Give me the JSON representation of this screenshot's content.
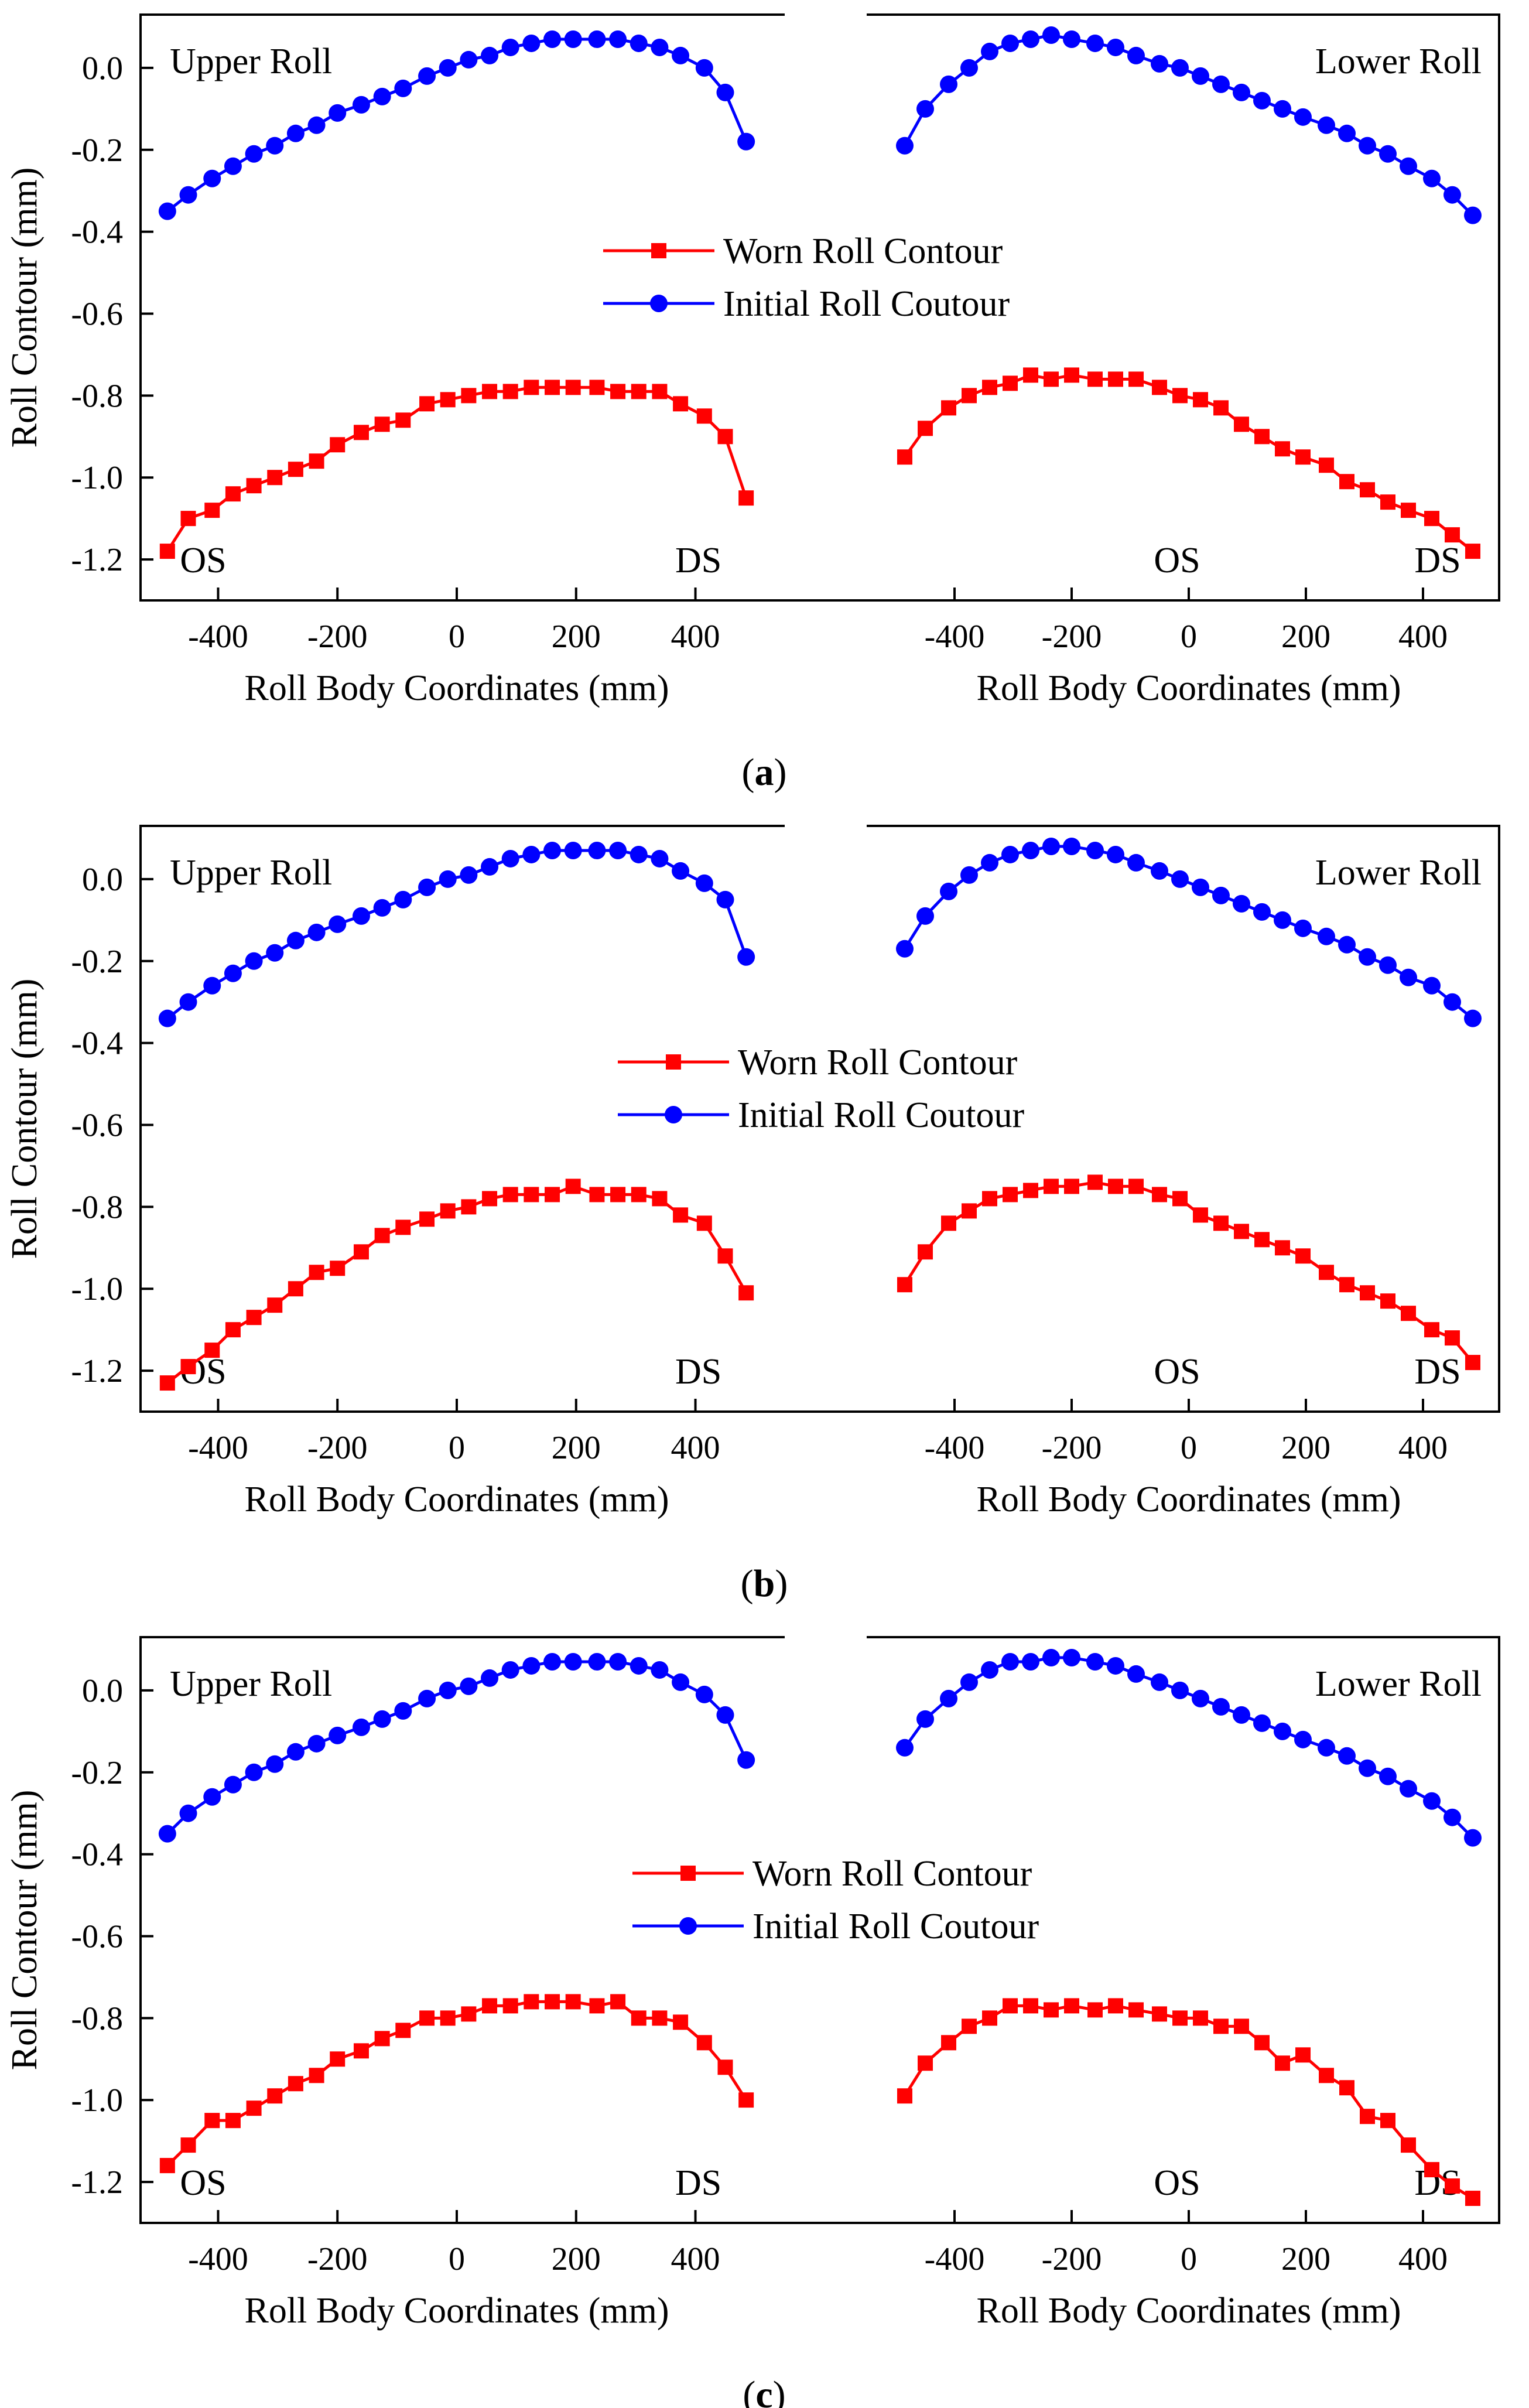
{
  "figure": {
    "y_axis_title": "Roll Contour (mm)",
    "x_axis_title": "Roll Body Coordinates (mm)",
    "left_roll_label": "Upper Roll",
    "right_roll_label": "Lower Roll",
    "os_label": "OS",
    "ds_label": "DS",
    "legend": {
      "worn": "Worn Roll Contour",
      "initial": "Initial Roll Coutour"
    },
    "colors": {
      "worn": "#ff0000",
      "initial": "#0000ff",
      "axis": "#000000"
    },
    "marker_shapes": {
      "worn": "square",
      "initial": "circle"
    }
  },
  "chart_data": [
    {
      "type": "line",
      "caption": "(a)",
      "caption_letter": "a",
      "ylabel": "Roll Contour (mm)",
      "ylim": [
        -1.3,
        0.13
      ],
      "yticks": [
        0.0,
        -0.2,
        -0.4,
        -0.6,
        -0.8,
        -1.0,
        -1.2
      ],
      "ytick_labels": [
        "0.0",
        "-0.2",
        "-0.4",
        "-0.6",
        "-0.8",
        "-1.0",
        "-1.2"
      ],
      "panels": [
        {
          "name": "Upper Roll",
          "xlabel": "Roll Body Coordinates (mm)",
          "xlim": [
            -530,
            530
          ],
          "xticks": [
            -400,
            -200,
            0,
            200,
            400
          ],
          "xtick_labels": [
            "-400",
            "-200",
            "0",
            "200",
            "400"
          ],
          "x": [
            -485,
            -450,
            -410,
            -375,
            -340,
            -305,
            -270,
            -235,
            -200,
            -160,
            -125,
            -90,
            -50,
            -15,
            20,
            55,
            90,
            125,
            160,
            195,
            235,
            270,
            305,
            340,
            375,
            415,
            450,
            485
          ],
          "series": [
            {
              "name": "Initial Roll Coutour",
              "values": [
                -0.35,
                -0.31,
                -0.27,
                -0.24,
                -0.21,
                -0.19,
                -0.16,
                -0.14,
                -0.11,
                -0.09,
                -0.07,
                -0.05,
                -0.02,
                0.0,
                0.02,
                0.03,
                0.05,
                0.06,
                0.07,
                0.07,
                0.07,
                0.07,
                0.06,
                0.05,
                0.03,
                0.0,
                -0.06,
                -0.18
              ]
            },
            {
              "name": "Worn Roll Contour",
              "values": [
                -1.18,
                -1.1,
                -1.08,
                -1.04,
                -1.02,
                -1.0,
                -0.98,
                -0.96,
                -0.92,
                -0.89,
                -0.87,
                -0.86,
                -0.82,
                -0.81,
                -0.8,
                -0.79,
                -0.79,
                -0.78,
                -0.78,
                -0.78,
                -0.78,
                -0.79,
                -0.79,
                -0.79,
                -0.82,
                -0.85,
                -0.9,
                -1.05
              ]
            }
          ]
        },
        {
          "name": "Lower Roll",
          "xlabel": "Roll Body Coordinates (mm)",
          "xlim": [
            -530,
            530
          ],
          "xticks": [
            -400,
            -200,
            0,
            200,
            400
          ],
          "xtick_labels": [
            "-400",
            "-200",
            "0",
            "200",
            "400"
          ],
          "x": [
            -485,
            -450,
            -410,
            -375,
            -340,
            -305,
            -270,
            -235,
            -200,
            -160,
            -125,
            -90,
            -50,
            -15,
            20,
            55,
            90,
            125,
            160,
            195,
            235,
            270,
            305,
            340,
            375,
            415,
            450,
            485
          ],
          "series": [
            {
              "name": "Initial Roll Coutour",
              "values": [
                -0.19,
                -0.1,
                -0.04,
                0.0,
                0.04,
                0.06,
                0.07,
                0.08,
                0.07,
                0.06,
                0.05,
                0.03,
                0.01,
                0.0,
                -0.02,
                -0.04,
                -0.06,
                -0.08,
                -0.1,
                -0.12,
                -0.14,
                -0.16,
                -0.19,
                -0.21,
                -0.24,
                -0.27,
                -0.31,
                -0.36
              ]
            },
            {
              "name": "Worn Roll Contour",
              "values": [
                -0.95,
                -0.88,
                -0.83,
                -0.8,
                -0.78,
                -0.77,
                -0.75,
                -0.76,
                -0.75,
                -0.76,
                -0.76,
                -0.76,
                -0.78,
                -0.8,
                -0.81,
                -0.83,
                -0.87,
                -0.9,
                -0.93,
                -0.95,
                -0.97,
                -1.01,
                -1.03,
                -1.06,
                -1.08,
                -1.1,
                -1.14,
                -1.18
              ]
            }
          ]
        }
      ]
    },
    {
      "type": "line",
      "caption": "(b)",
      "caption_letter": "b",
      "ylabel": "Roll Contour (mm)",
      "ylim": [
        -1.3,
        0.13
      ],
      "yticks": [
        0.0,
        -0.2,
        -0.4,
        -0.6,
        -0.8,
        -1.0,
        -1.2
      ],
      "ytick_labels": [
        "0.0",
        "-0.2",
        "-0.4",
        "-0.6",
        "-0.8",
        "-1.0",
        "-1.2"
      ],
      "panels": [
        {
          "name": "Upper Roll",
          "xlabel": "Roll Body Coordinates (mm)",
          "xlim": [
            -530,
            530
          ],
          "xticks": [
            -400,
            -200,
            0,
            200,
            400
          ],
          "xtick_labels": [
            "-400",
            "-200",
            "0",
            "200",
            "400"
          ],
          "x": [
            -485,
            -450,
            -410,
            -375,
            -340,
            -305,
            -270,
            -235,
            -200,
            -160,
            -125,
            -90,
            -50,
            -15,
            20,
            55,
            90,
            125,
            160,
            195,
            235,
            270,
            305,
            340,
            375,
            415,
            450,
            485
          ],
          "series": [
            {
              "name": "Initial Roll Coutour",
              "values": [
                -0.34,
                -0.3,
                -0.26,
                -0.23,
                -0.2,
                -0.18,
                -0.15,
                -0.13,
                -0.11,
                -0.09,
                -0.07,
                -0.05,
                -0.02,
                0.0,
                0.01,
                0.03,
                0.05,
                0.06,
                0.07,
                0.07,
                0.07,
                0.07,
                0.06,
                0.05,
                0.02,
                -0.01,
                -0.05,
                -0.19
              ]
            },
            {
              "name": "Worn Roll Contour",
              "values": [
                -1.23,
                -1.19,
                -1.15,
                -1.1,
                -1.07,
                -1.04,
                -1.0,
                -0.96,
                -0.95,
                -0.91,
                -0.87,
                -0.85,
                -0.83,
                -0.81,
                -0.8,
                -0.78,
                -0.77,
                -0.77,
                -0.77,
                -0.75,
                -0.77,
                -0.77,
                -0.77,
                -0.78,
                -0.82,
                -0.84,
                -0.92,
                -1.01
              ]
            }
          ]
        },
        {
          "name": "Lower Roll",
          "xlabel": "Roll Body Coordinates (mm)",
          "xlim": [
            -530,
            530
          ],
          "xticks": [
            -400,
            -200,
            0,
            200,
            400
          ],
          "xtick_labels": [
            "-400",
            "-200",
            "0",
            "200",
            "400"
          ],
          "x": [
            -485,
            -450,
            -410,
            -375,
            -340,
            -305,
            -270,
            -235,
            -200,
            -160,
            -125,
            -90,
            -50,
            -15,
            20,
            55,
            90,
            125,
            160,
            195,
            235,
            270,
            305,
            340,
            375,
            415,
            450,
            485
          ],
          "series": [
            {
              "name": "Initial Roll Coutour",
              "values": [
                -0.17,
                -0.09,
                -0.03,
                0.01,
                0.04,
                0.06,
                0.07,
                0.08,
                0.08,
                0.07,
                0.06,
                0.04,
                0.02,
                0.0,
                -0.02,
                -0.04,
                -0.06,
                -0.08,
                -0.1,
                -0.12,
                -0.14,
                -0.16,
                -0.19,
                -0.21,
                -0.24,
                -0.26,
                -0.3,
                -0.34
              ]
            },
            {
              "name": "Worn Roll Contour",
              "values": [
                -0.99,
                -0.91,
                -0.84,
                -0.81,
                -0.78,
                -0.77,
                -0.76,
                -0.75,
                -0.75,
                -0.74,
                -0.75,
                -0.75,
                -0.77,
                -0.78,
                -0.82,
                -0.84,
                -0.86,
                -0.88,
                -0.9,
                -0.92,
                -0.96,
                -0.99,
                -1.01,
                -1.03,
                -1.06,
                -1.1,
                -1.12,
                -1.18
              ]
            }
          ]
        }
      ]
    },
    {
      "type": "line",
      "caption": "(c)",
      "caption_letter": "c",
      "ylabel": "Roll Contour (mm)",
      "ylim": [
        -1.3,
        0.13
      ],
      "yticks": [
        0.0,
        -0.2,
        -0.4,
        -0.6,
        -0.8,
        -1.0,
        -1.2
      ],
      "ytick_labels": [
        "0.0",
        "-0.2",
        "-0.4",
        "-0.6",
        "-0.8",
        "-1.0",
        "-1.2"
      ],
      "panels": [
        {
          "name": "Upper Roll",
          "xlabel": "Roll Body Coordinates (mm)",
          "xlim": [
            -530,
            530
          ],
          "xticks": [
            -400,
            -200,
            0,
            200,
            400
          ],
          "xtick_labels": [
            "-400",
            "-200",
            "0",
            "200",
            "400"
          ],
          "x": [
            -485,
            -450,
            -410,
            -375,
            -340,
            -305,
            -270,
            -235,
            -200,
            -160,
            -125,
            -90,
            -50,
            -15,
            20,
            55,
            90,
            125,
            160,
            195,
            235,
            270,
            305,
            340,
            375,
            415,
            450,
            485
          ],
          "series": [
            {
              "name": "Initial Roll Coutour",
              "values": [
                -0.35,
                -0.3,
                -0.26,
                -0.23,
                -0.2,
                -0.18,
                -0.15,
                -0.13,
                -0.11,
                -0.09,
                -0.07,
                -0.05,
                -0.02,
                0.0,
                0.01,
                0.03,
                0.05,
                0.06,
                0.07,
                0.07,
                0.07,
                0.07,
                0.06,
                0.05,
                0.02,
                -0.01,
                -0.06,
                -0.17
              ]
            },
            {
              "name": "Worn Roll Contour",
              "values": [
                -1.16,
                -1.11,
                -1.05,
                -1.05,
                -1.02,
                -0.99,
                -0.96,
                -0.94,
                -0.9,
                -0.88,
                -0.85,
                -0.83,
                -0.8,
                -0.8,
                -0.79,
                -0.77,
                -0.77,
                -0.76,
                -0.76,
                -0.76,
                -0.77,
                -0.76,
                -0.8,
                -0.8,
                -0.81,
                -0.86,
                -0.92,
                -1.0
              ]
            }
          ]
        },
        {
          "name": "Lower Roll",
          "xlabel": "Roll Body Coordinates (mm)",
          "xlim": [
            -530,
            530
          ],
          "xticks": [
            -400,
            -200,
            0,
            200,
            400
          ],
          "xtick_labels": [
            "-400",
            "-200",
            "0",
            "200",
            "400"
          ],
          "x": [
            -485,
            -450,
            -410,
            -375,
            -340,
            -305,
            -270,
            -235,
            -200,
            -160,
            -125,
            -90,
            -50,
            -15,
            20,
            55,
            90,
            125,
            160,
            195,
            235,
            270,
            305,
            340,
            375,
            415,
            450,
            485
          ],
          "series": [
            {
              "name": "Initial Roll Coutour",
              "values": [
                -0.14,
                -0.07,
                -0.02,
                0.02,
                0.05,
                0.07,
                0.07,
                0.08,
                0.08,
                0.07,
                0.06,
                0.04,
                0.02,
                0.0,
                -0.02,
                -0.04,
                -0.06,
                -0.08,
                -0.1,
                -0.12,
                -0.14,
                -0.16,
                -0.19,
                -0.21,
                -0.24,
                -0.27,
                -0.31,
                -0.36
              ]
            },
            {
              "name": "Worn Roll Contour",
              "values": [
                -0.99,
                -0.91,
                -0.86,
                -0.82,
                -0.8,
                -0.77,
                -0.77,
                -0.78,
                -0.77,
                -0.78,
                -0.77,
                -0.78,
                -0.79,
                -0.8,
                -0.8,
                -0.82,
                -0.82,
                -0.86,
                -0.91,
                -0.89,
                -0.94,
                -0.97,
                -1.04,
                -1.05,
                -1.11,
                -1.17,
                -1.21,
                -1.24
              ]
            }
          ]
        }
      ]
    }
  ]
}
